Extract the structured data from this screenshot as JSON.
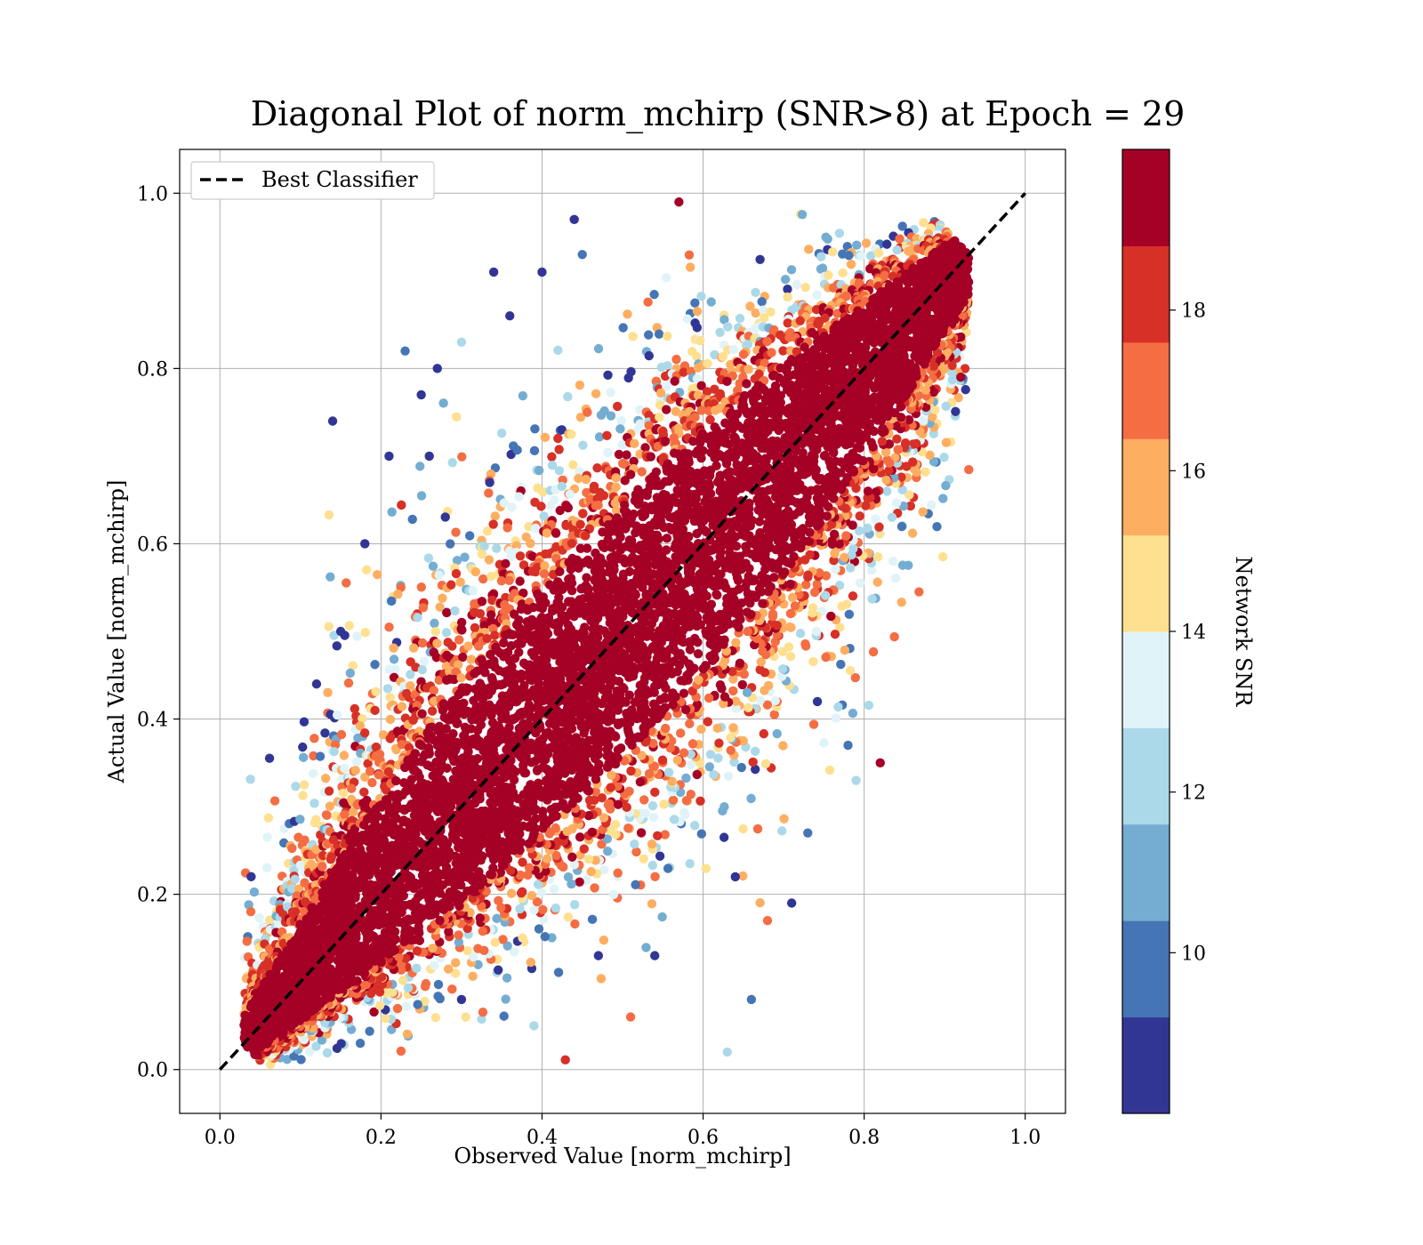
{
  "chart_data": {
    "type": "scatter",
    "title": "Diagonal Plot of norm_mchirp (SNR>8) at Epoch = 29",
    "xlabel": "Observed Value [norm_mchirp]",
    "ylabel": "Actual Value [norm_mchirp]",
    "xlim": [
      -0.05,
      1.05
    ],
    "ylim": [
      -0.05,
      1.05
    ],
    "xticks": [
      "0.0",
      "0.2",
      "0.4",
      "0.6",
      "0.8",
      "1.0"
    ],
    "yticks": [
      "0.0",
      "0.2",
      "0.4",
      "0.6",
      "0.8",
      "1.0"
    ],
    "grid": true,
    "legend": {
      "placement": "upper-left",
      "entries": [
        {
          "label": "Best Classifier",
          "style": "black dashed line"
        }
      ]
    },
    "reference_line": {
      "label": "Best Classifier",
      "x": [
        0.0,
        1.0
      ],
      "y": [
        0.0,
        1.0
      ]
    },
    "colorbar": {
      "label": "Network SNR",
      "min": 8,
      "max": 20,
      "ticks": [
        "10",
        "12",
        "14",
        "16",
        "18"
      ],
      "colors": [
        "#313695",
        "#4575b4",
        "#74add1",
        "#abd9e9",
        "#e0f3f8",
        "#fee090",
        "#fdae61",
        "#f46d43",
        "#d73027",
        "#a50026"
      ]
    },
    "points": [
      [
        0.14,
        0.74,
        9
      ],
      [
        0.12,
        0.44,
        9
      ],
      [
        0.18,
        0.6,
        9
      ],
      [
        0.21,
        0.7,
        9
      ],
      [
        0.23,
        0.82,
        10
      ],
      [
        0.27,
        0.8,
        9
      ],
      [
        0.34,
        0.91,
        9
      ],
      [
        0.4,
        0.91,
        9
      ],
      [
        0.44,
        0.97,
        9
      ],
      [
        0.57,
        0.99,
        19
      ],
      [
        0.64,
        0.22,
        9
      ],
      [
        0.71,
        0.19,
        9
      ],
      [
        0.82,
        0.35,
        19
      ],
      [
        0.63,
        0.02,
        12
      ],
      [
        0.47,
        0.13,
        9
      ],
      [
        0.51,
        0.06,
        17
      ],
      [
        0.92,
        0.79,
        19
      ],
      [
        0.91,
        0.94,
        19
      ],
      [
        0.66,
        0.08,
        10
      ],
      [
        0.78,
        0.37,
        10
      ],
      [
        0.39,
        0.05,
        12
      ],
      [
        0.3,
        0.08,
        9
      ],
      [
        0.26,
        0.7,
        9
      ],
      [
        0.15,
        0.5,
        9
      ],
      [
        0.54,
        0.13,
        9
      ],
      [
        0.68,
        0.17,
        17
      ],
      [
        0.79,
        0.33,
        12
      ],
      [
        0.73,
        0.27,
        10
      ],
      [
        0.45,
        0.93,
        10
      ],
      [
        0.36,
        0.86,
        9
      ],
      [
        0.3,
        0.83,
        12
      ],
      [
        0.25,
        0.77,
        9
      ]
    ]
  }
}
